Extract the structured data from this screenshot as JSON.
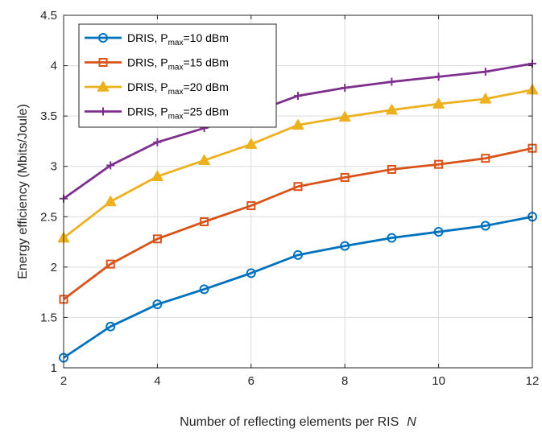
{
  "chart_data": {
    "type": "line",
    "title": "",
    "xlabel": "Number of reflecting elements per RIS",
    "xlabel_var": "N",
    "ylabel": "Energy efficiency (Mbits/Joule)",
    "xlim": [
      2,
      12
    ],
    "ylim": [
      1,
      4.5
    ],
    "xticks": [
      2,
      4,
      6,
      8,
      10,
      12
    ],
    "yticks": [
      1,
      1.5,
      2,
      2.5,
      3,
      3.5,
      4,
      4.5
    ],
    "ytick_labels": [
      "1",
      "1.5",
      "2",
      "2.5",
      "3",
      "3.5",
      "4",
      "4.5"
    ],
    "grid": true,
    "legend_position": "top-left",
    "x": [
      2,
      3,
      4,
      5,
      6,
      7,
      8,
      9,
      10,
      11,
      12
    ],
    "series": [
      {
        "name": "DRIS, Pmax=10 dBm",
        "legend": {
          "prefix": "DRIS, P",
          "sub": "max",
          "suffix": "=10 dBm"
        },
        "color": "#0072BD",
        "marker": "circle",
        "values": [
          1.1,
          1.41,
          1.63,
          1.78,
          1.94,
          2.12,
          2.21,
          2.29,
          2.35,
          2.41,
          2.5
        ]
      },
      {
        "name": "DRIS, Pmax=15 dBm",
        "legend": {
          "prefix": "DRIS, P",
          "sub": "max",
          "suffix": "=15 dBm"
        },
        "color": "#D95319",
        "marker": "square",
        "values": [
          1.68,
          2.03,
          2.28,
          2.45,
          2.61,
          2.8,
          2.89,
          2.97,
          3.02,
          3.08,
          3.18
        ]
      },
      {
        "name": "DRIS, Pmax=20 dBm",
        "legend": {
          "prefix": "DRIS, P",
          "sub": "max",
          "suffix": "=20 dBm"
        },
        "color": "#EDB120",
        "marker": "triangle",
        "values": [
          2.29,
          2.65,
          2.9,
          3.06,
          3.22,
          3.41,
          3.49,
          3.56,
          3.62,
          3.67,
          3.76
        ]
      },
      {
        "name": "DRIS, Pmax=25 dBm",
        "legend": {
          "prefix": "DRIS, P",
          "sub": "max",
          "suffix": "=25 dBm"
        },
        "color": "#7E2F8E",
        "marker": "plus",
        "values": [
          2.68,
          3.01,
          3.24,
          3.38,
          3.53,
          3.7,
          3.78,
          3.84,
          3.89,
          3.94,
          4.02
        ]
      }
    ]
  }
}
